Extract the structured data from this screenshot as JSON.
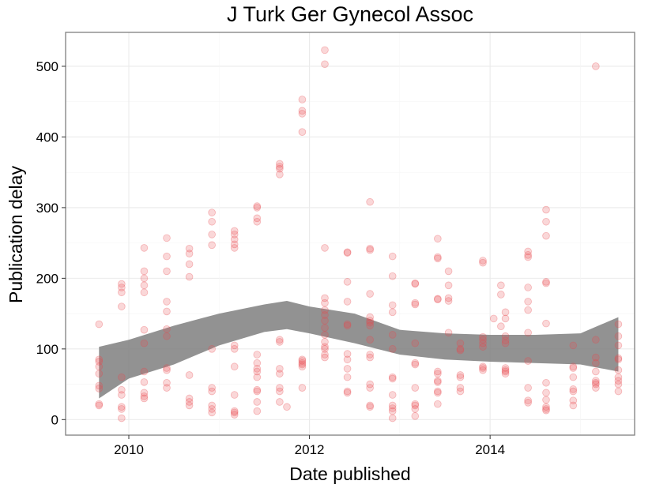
{
  "chart_data": {
    "type": "scatter",
    "title": "J Turk Ger Gynecol Assoc",
    "xlabel": "Date published",
    "ylabel": "Publication delay",
    "xlim": [
      2009.3,
      2015.6
    ],
    "ylim": [
      -22,
      548
    ],
    "x_ticks": [
      2010,
      2012,
      2014
    ],
    "x_tick_labels": [
      "2010",
      "2012",
      "2014"
    ],
    "y_ticks": [
      0,
      100,
      200,
      300,
      400,
      500
    ],
    "y_tick_labels": [
      "0",
      "100",
      "200",
      "300",
      "400",
      "500"
    ],
    "grid": true,
    "legend": "none",
    "colors": {
      "points": "#e8474c",
      "smooth_band": "#7f7f7f",
      "panel_border": "#7f7f7f",
      "grid_major": "#ebebeb",
      "grid_minor": "#f5f5f5"
    },
    "smooth_band": {
      "x": [
        2009.67,
        2010.0,
        2010.5,
        2011.0,
        2011.5,
        2011.75,
        2012.0,
        2012.5,
        2013.0,
        2013.5,
        2014.0,
        2014.5,
        2015.0,
        2015.42
      ],
      "lower": [
        30,
        58,
        78,
        105,
        124,
        128,
        122,
        108,
        92,
        85,
        82,
        80,
        78,
        68
      ],
      "upper": [
        103,
        113,
        133,
        150,
        163,
        168,
        160,
        150,
        127,
        122,
        120,
        120,
        122,
        145
      ]
    },
    "points": [
      [
        2009.67,
        135
      ],
      [
        2009.67,
        85
      ],
      [
        2009.67,
        82
      ],
      [
        2009.67,
        75
      ],
      [
        2009.67,
        65
      ],
      [
        2009.67,
        48
      ],
      [
        2009.67,
        44
      ],
      [
        2009.67,
        22
      ],
      [
        2009.67,
        20
      ],
      [
        2009.92,
        192
      ],
      [
        2009.92,
        187
      ],
      [
        2009.92,
        180
      ],
      [
        2009.92,
        160
      ],
      [
        2009.92,
        60
      ],
      [
        2009.92,
        42
      ],
      [
        2009.92,
        35
      ],
      [
        2009.92,
        18
      ],
      [
        2009.92,
        15
      ],
      [
        2009.92,
        2
      ],
      [
        2010.17,
        243
      ],
      [
        2010.17,
        210
      ],
      [
        2010.17,
        200
      ],
      [
        2010.17,
        190
      ],
      [
        2010.17,
        180
      ],
      [
        2010.17,
        127
      ],
      [
        2010.17,
        108
      ],
      [
        2010.17,
        68
      ],
      [
        2010.17,
        53
      ],
      [
        2010.17,
        38
      ],
      [
        2010.17,
        33
      ],
      [
        2010.17,
        30
      ],
      [
        2010.42,
        257
      ],
      [
        2010.42,
        231
      ],
      [
        2010.42,
        210
      ],
      [
        2010.42,
        167
      ],
      [
        2010.42,
        153
      ],
      [
        2010.42,
        128
      ],
      [
        2010.42,
        118
      ],
      [
        2010.42,
        73
      ],
      [
        2010.42,
        70
      ],
      [
        2010.42,
        52
      ],
      [
        2010.42,
        45
      ],
      [
        2010.67,
        242
      ],
      [
        2010.67,
        235
      ],
      [
        2010.67,
        220
      ],
      [
        2010.67,
        202
      ],
      [
        2010.67,
        63
      ],
      [
        2010.67,
        30
      ],
      [
        2010.67,
        25
      ],
      [
        2010.67,
        20
      ],
      [
        2010.92,
        293
      ],
      [
        2010.92,
        280
      ],
      [
        2010.92,
        262
      ],
      [
        2010.92,
        247
      ],
      [
        2010.92,
        100
      ],
      [
        2010.92,
        45
      ],
      [
        2010.92,
        40
      ],
      [
        2010.92,
        20
      ],
      [
        2010.92,
        15
      ],
      [
        2010.92,
        10
      ],
      [
        2011.17,
        267
      ],
      [
        2011.17,
        262
      ],
      [
        2011.17,
        255
      ],
      [
        2011.17,
        248
      ],
      [
        2011.17,
        243
      ],
      [
        2011.17,
        105
      ],
      [
        2011.17,
        100
      ],
      [
        2011.17,
        75
      ],
      [
        2011.17,
        35
      ],
      [
        2011.17,
        12
      ],
      [
        2011.17,
        10
      ],
      [
        2011.17,
        7
      ],
      [
        2011.42,
        302
      ],
      [
        2011.42,
        300
      ],
      [
        2011.42,
        285
      ],
      [
        2011.42,
        280
      ],
      [
        2011.42,
        92
      ],
      [
        2011.42,
        80
      ],
      [
        2011.42,
        72
      ],
      [
        2011.42,
        68
      ],
      [
        2011.42,
        60
      ],
      [
        2011.42,
        42
      ],
      [
        2011.42,
        40
      ],
      [
        2011.42,
        25
      ],
      [
        2011.42,
        12
      ],
      [
        2011.67,
        362
      ],
      [
        2011.67,
        358
      ],
      [
        2011.67,
        355
      ],
      [
        2011.67,
        347
      ],
      [
        2011.67,
        113
      ],
      [
        2011.67,
        110
      ],
      [
        2011.67,
        72
      ],
      [
        2011.67,
        65
      ],
      [
        2011.67,
        45
      ],
      [
        2011.67,
        40
      ],
      [
        2011.67,
        25
      ],
      [
        2011.75,
        18
      ],
      [
        2011.92,
        453
      ],
      [
        2011.92,
        437
      ],
      [
        2011.92,
        433
      ],
      [
        2011.92,
        407
      ],
      [
        2011.92,
        85
      ],
      [
        2011.92,
        83
      ],
      [
        2011.92,
        80
      ],
      [
        2011.92,
        78
      ],
      [
        2011.92,
        75
      ],
      [
        2011.92,
        45
      ],
      [
        2012.17,
        523
      ],
      [
        2012.17,
        503
      ],
      [
        2012.17,
        243
      ],
      [
        2012.17,
        172
      ],
      [
        2012.17,
        165
      ],
      [
        2012.17,
        155
      ],
      [
        2012.17,
        148
      ],
      [
        2012.17,
        140
      ],
      [
        2012.17,
        130
      ],
      [
        2012.17,
        120
      ],
      [
        2012.17,
        110
      ],
      [
        2012.17,
        103
      ],
      [
        2012.17,
        100
      ],
      [
        2012.17,
        92
      ],
      [
        2012.17,
        88
      ],
      [
        2012.42,
        237
      ],
      [
        2012.42,
        236
      ],
      [
        2012.42,
        195
      ],
      [
        2012.42,
        167
      ],
      [
        2012.42,
        135
      ],
      [
        2012.42,
        133
      ],
      [
        2012.42,
        93
      ],
      [
        2012.42,
        85
      ],
      [
        2012.42,
        72
      ],
      [
        2012.42,
        60
      ],
      [
        2012.42,
        40
      ],
      [
        2012.42,
        38
      ],
      [
        2012.67,
        308
      ],
      [
        2012.67,
        242
      ],
      [
        2012.67,
        240
      ],
      [
        2012.67,
        178
      ],
      [
        2012.67,
        145
      ],
      [
        2012.67,
        140
      ],
      [
        2012.67,
        137
      ],
      [
        2012.67,
        133
      ],
      [
        2012.67,
        113
      ],
      [
        2012.67,
        92
      ],
      [
        2012.67,
        88
      ],
      [
        2012.67,
        50
      ],
      [
        2012.67,
        45
      ],
      [
        2012.67,
        20
      ],
      [
        2012.67,
        18
      ],
      [
        2012.92,
        231
      ],
      [
        2012.92,
        203
      ],
      [
        2012.92,
        162
      ],
      [
        2012.92,
        152
      ],
      [
        2012.92,
        120
      ],
      [
        2012.92,
        100
      ],
      [
        2012.92,
        60
      ],
      [
        2012.92,
        58
      ],
      [
        2012.92,
        35
      ],
      [
        2012.92,
        20
      ],
      [
        2012.92,
        16
      ],
      [
        2012.92,
        12
      ],
      [
        2012.92,
        2
      ],
      [
        2013.17,
        193
      ],
      [
        2013.17,
        192
      ],
      [
        2013.17,
        165
      ],
      [
        2013.17,
        163
      ],
      [
        2013.17,
        108
      ],
      [
        2013.17,
        80
      ],
      [
        2013.17,
        78
      ],
      [
        2013.17,
        45
      ],
      [
        2013.17,
        22
      ],
      [
        2013.17,
        20
      ],
      [
        2013.17,
        15
      ],
      [
        2013.17,
        5
      ],
      [
        2013.42,
        256
      ],
      [
        2013.42,
        230
      ],
      [
        2013.42,
        228
      ],
      [
        2013.42,
        171
      ],
      [
        2013.42,
        170
      ],
      [
        2013.42,
        68
      ],
      [
        2013.42,
        65
      ],
      [
        2013.42,
        55
      ],
      [
        2013.42,
        53
      ],
      [
        2013.42,
        40
      ],
      [
        2013.42,
        38
      ],
      [
        2013.42,
        22
      ],
      [
        2013.54,
        210
      ],
      [
        2013.54,
        190
      ],
      [
        2013.54,
        172
      ],
      [
        2013.54,
        168
      ],
      [
        2013.54,
        123
      ],
      [
        2013.67,
        108
      ],
      [
        2013.67,
        100
      ],
      [
        2013.67,
        98
      ],
      [
        2013.67,
        63
      ],
      [
        2013.67,
        60
      ],
      [
        2013.67,
        45
      ],
      [
        2013.67,
        40
      ],
      [
        2013.92,
        225
      ],
      [
        2013.92,
        222
      ],
      [
        2013.92,
        117
      ],
      [
        2013.92,
        113
      ],
      [
        2013.92,
        108
      ],
      [
        2013.92,
        103
      ],
      [
        2013.92,
        75
      ],
      [
        2013.92,
        73
      ],
      [
        2013.92,
        70
      ],
      [
        2014.04,
        143
      ],
      [
        2014.12,
        190
      ],
      [
        2014.12,
        177
      ],
      [
        2014.12,
        132
      ],
      [
        2014.17,
        152
      ],
      [
        2014.17,
        143
      ],
      [
        2014.17,
        118
      ],
      [
        2014.17,
        112
      ],
      [
        2014.17,
        108
      ],
      [
        2014.17,
        73
      ],
      [
        2014.17,
        70
      ],
      [
        2014.17,
        68
      ],
      [
        2014.17,
        65
      ],
      [
        2014.42,
        238
      ],
      [
        2014.42,
        233
      ],
      [
        2014.42,
        230
      ],
      [
        2014.42,
        187
      ],
      [
        2014.42,
        167
      ],
      [
        2014.42,
        155
      ],
      [
        2014.42,
        123
      ],
      [
        2014.42,
        83
      ],
      [
        2014.42,
        45
      ],
      [
        2014.42,
        27
      ],
      [
        2014.42,
        24
      ],
      [
        2014.62,
        297
      ],
      [
        2014.62,
        280
      ],
      [
        2014.62,
        260
      ],
      [
        2014.62,
        195
      ],
      [
        2014.62,
        193
      ],
      [
        2014.62,
        136
      ],
      [
        2014.62,
        52
      ],
      [
        2014.62,
        38
      ],
      [
        2014.62,
        28
      ],
      [
        2014.62,
        18
      ],
      [
        2014.62,
        15
      ],
      [
        2014.62,
        13
      ],
      [
        2014.92,
        105
      ],
      [
        2014.92,
        75
      ],
      [
        2014.92,
        73
      ],
      [
        2014.92,
        60
      ],
      [
        2014.92,
        43
      ],
      [
        2014.92,
        40
      ],
      [
        2014.92,
        27
      ],
      [
        2014.92,
        20
      ],
      [
        2015.17,
        500
      ],
      [
        2015.17,
        113
      ],
      [
        2015.17,
        88
      ],
      [
        2015.17,
        80
      ],
      [
        2015.17,
        68
      ],
      [
        2015.17,
        55
      ],
      [
        2015.17,
        52
      ],
      [
        2015.17,
        50
      ],
      [
        2015.17,
        45
      ],
      [
        2015.42,
        135
      ],
      [
        2015.42,
        118
      ],
      [
        2015.42,
        105
      ],
      [
        2015.42,
        87
      ],
      [
        2015.42,
        85
      ],
      [
        2015.42,
        70
      ],
      [
        2015.42,
        60
      ],
      [
        2015.42,
        55
      ],
      [
        2015.42,
        50
      ],
      [
        2015.42,
        40
      ]
    ]
  }
}
